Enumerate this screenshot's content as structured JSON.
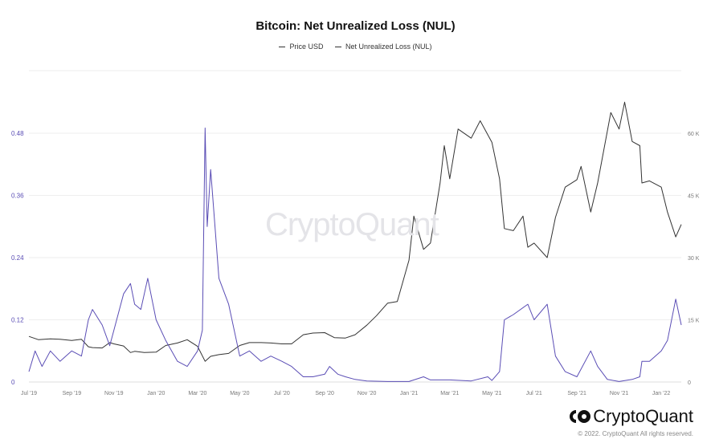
{
  "chart_data": {
    "type": "line",
    "title": "Bitcoin: Net Unrealized Loss (NUL)",
    "legend": [
      "Price USD",
      "Net Unrealized Loss (NUL)"
    ],
    "legend_position": "top-center",
    "x_ticks": [
      "Jul '19",
      "Sep '19",
      "Nov '19",
      "Jan '20",
      "Mar '20",
      "May '20",
      "Jul '20",
      "Sep '20",
      "Nov '20",
      "Jan '21",
      "Mar '21",
      "May '21",
      "Jul '21",
      "Sep '21",
      "Nov '21",
      "Jan '22"
    ],
    "x_tick_dates": [
      "2019-07-01",
      "2019-09-01",
      "2019-11-01",
      "2020-01-01",
      "2020-03-01",
      "2020-05-01",
      "2020-07-01",
      "2020-09-01",
      "2020-11-01",
      "2021-01-01",
      "2021-03-01",
      "2021-05-01",
      "2021-07-01",
      "2021-09-01",
      "2021-11-01",
      "2022-01-01"
    ],
    "xlim": [
      "2019-07-01",
      "2022-01-30"
    ],
    "y_left": {
      "ticks": [
        "0",
        "0.12",
        "0.24",
        "0.36",
        "0.48"
      ],
      "lim": [
        0,
        0.48
      ]
    },
    "y_right": {
      "ticks": [
        "0",
        "15 K",
        "30 K",
        "45 K",
        "60 K"
      ],
      "lim": [
        0,
        60000
      ]
    },
    "grid": true,
    "series": [
      {
        "name": "Price USD",
        "axis": "right",
        "color": "#333333",
        "x": [
          "2019-07-01",
          "2019-07-15",
          "2019-08-01",
          "2019-08-15",
          "2019-09-01",
          "2019-09-15",
          "2019-09-25",
          "2019-10-01",
          "2019-10-15",
          "2019-10-26",
          "2019-11-01",
          "2019-11-15",
          "2019-11-25",
          "2019-12-01",
          "2019-12-15",
          "2020-01-01",
          "2020-01-15",
          "2020-02-01",
          "2020-02-15",
          "2020-03-01",
          "2020-03-12",
          "2020-03-20",
          "2020-04-01",
          "2020-04-15",
          "2020-05-01",
          "2020-05-15",
          "2020-06-01",
          "2020-06-15",
          "2020-07-01",
          "2020-07-15",
          "2020-08-01",
          "2020-08-15",
          "2020-09-01",
          "2020-09-15",
          "2020-10-01",
          "2020-10-15",
          "2020-11-01",
          "2020-11-15",
          "2020-12-01",
          "2020-12-15",
          "2021-01-01",
          "2021-01-08",
          "2021-01-22",
          "2021-02-01",
          "2021-02-15",
          "2021-02-21",
          "2021-03-01",
          "2021-03-13",
          "2021-04-01",
          "2021-04-14",
          "2021-05-01",
          "2021-05-12",
          "2021-05-19",
          "2021-06-01",
          "2021-06-15",
          "2021-06-22",
          "2021-07-01",
          "2021-07-20",
          "2021-08-01",
          "2021-08-15",
          "2021-09-01",
          "2021-09-07",
          "2021-09-21",
          "2021-10-01",
          "2021-10-20",
          "2021-11-01",
          "2021-11-09",
          "2021-11-20",
          "2021-12-01",
          "2021-12-04",
          "2021-12-15",
          "2022-01-01",
          "2022-01-10",
          "2022-01-22",
          "2022-01-30"
        ],
        "values": [
          11000,
          10200,
          10400,
          10300,
          10000,
          10300,
          8500,
          8300,
          8200,
          9500,
          9200,
          8700,
          7100,
          7400,
          7100,
          7200,
          8800,
          9400,
          10200,
          8600,
          5000,
          6200,
          6600,
          6900,
          8800,
          9500,
          9500,
          9400,
          9200,
          9200,
          11400,
          11800,
          11900,
          10700,
          10600,
          11400,
          13700,
          16000,
          19000,
          19400,
          29400,
          40000,
          32000,
          33500,
          48000,
          57000,
          49000,
          61000,
          58800,
          63000,
          57800,
          49000,
          37000,
          36500,
          40000,
          32500,
          33500,
          30000,
          39700,
          47000,
          48800,
          52000,
          41000,
          48000,
          65000,
          61000,
          67500,
          58000,
          57000,
          48000,
          48500,
          47000,
          41000,
          35000,
          38000
        ]
      },
      {
        "name": "Net Unrealized Loss (NUL)",
        "axis": "left",
        "color": "#5a4db5",
        "x": [
          "2019-07-01",
          "2019-07-10",
          "2019-07-20",
          "2019-08-01",
          "2019-08-15",
          "2019-09-01",
          "2019-09-15",
          "2019-09-25",
          "2019-10-01",
          "2019-10-15",
          "2019-10-26",
          "2019-11-01",
          "2019-11-15",
          "2019-11-25",
          "2019-12-01",
          "2019-12-10",
          "2019-12-20",
          "2020-01-01",
          "2020-01-15",
          "2020-02-01",
          "2020-02-15",
          "2020-03-01",
          "2020-03-08",
          "2020-03-12",
          "2020-03-15",
          "2020-03-20",
          "2020-04-01",
          "2020-04-15",
          "2020-05-01",
          "2020-05-15",
          "2020-06-01",
          "2020-06-15",
          "2020-07-01",
          "2020-07-15",
          "2020-08-01",
          "2020-08-15",
          "2020-09-01",
          "2020-09-08",
          "2020-09-20",
          "2020-10-01",
          "2020-10-15",
          "2020-11-01",
          "2020-12-01",
          "2021-01-01",
          "2021-01-22",
          "2021-02-01",
          "2021-03-01",
          "2021-04-01",
          "2021-04-25",
          "2021-05-01",
          "2021-05-12",
          "2021-05-19",
          "2021-06-01",
          "2021-06-22",
          "2021-07-01",
          "2021-07-20",
          "2021-08-01",
          "2021-08-15",
          "2021-09-01",
          "2021-09-21",
          "2021-10-01",
          "2021-10-15",
          "2021-11-01",
          "2021-11-20",
          "2021-12-01",
          "2021-12-04",
          "2021-12-15",
          "2022-01-01",
          "2022-01-10",
          "2022-01-22",
          "2022-01-30"
        ],
        "values": [
          0.02,
          0.06,
          0.03,
          0.06,
          0.04,
          0.06,
          0.05,
          0.12,
          0.14,
          0.11,
          0.07,
          0.1,
          0.17,
          0.19,
          0.15,
          0.14,
          0.2,
          0.12,
          0.08,
          0.04,
          0.03,
          0.06,
          0.1,
          0.49,
          0.3,
          0.41,
          0.2,
          0.15,
          0.05,
          0.06,
          0.04,
          0.05,
          0.04,
          0.03,
          0.01,
          0.01,
          0.015,
          0.03,
          0.015,
          0.01,
          0.005,
          0.002,
          0.001,
          0.001,
          0.01,
          0.004,
          0.004,
          0.002,
          0.01,
          0.003,
          0.02,
          0.12,
          0.13,
          0.15,
          0.12,
          0.15,
          0.05,
          0.02,
          0.01,
          0.06,
          0.03,
          0.005,
          0.001,
          0.005,
          0.01,
          0.04,
          0.04,
          0.06,
          0.08,
          0.16,
          0.11
        ]
      }
    ]
  },
  "watermark": "CryptoQuant",
  "footer": {
    "brand": "CryptoQuant",
    "copyright": "© 2022. CryptoQuant All rights reserved."
  }
}
